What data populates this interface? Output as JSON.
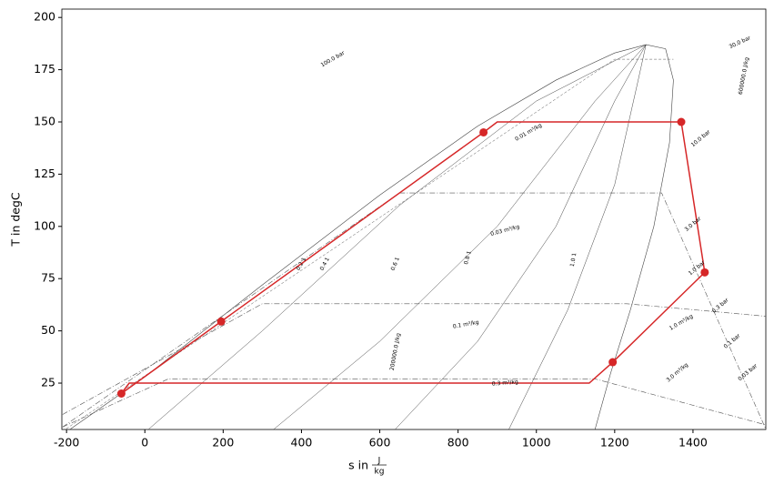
{
  "chart_data": {
    "type": "line",
    "xlabel": {
      "text": "s in",
      "unit_num": "J",
      "unit_den": "kg"
    },
    "ylabel": "T in degC",
    "xlim": [
      -212,
      1586
    ],
    "ylim": [
      2.8,
      204
    ],
    "xticks": [
      -200,
      0,
      200,
      400,
      600,
      800,
      1000,
      1200,
      1400
    ],
    "yticks": [
      25,
      50,
      75,
      100,
      125,
      150,
      175,
      200
    ],
    "series": [
      {
        "color": "#444444",
        "linestyle": "solid",
        "width": 0.6,
        "x": [
          -190,
          0,
          300,
          600,
          850,
          1050,
          1200,
          1280,
          1330,
          1350,
          1340,
          1300,
          1240,
          1190,
          1150
        ],
        "values": [
          3,
          28,
          72,
          115,
          148,
          170,
          183,
          187,
          185,
          170,
          140,
          100,
          60,
          30,
          3
        ]
      },
      {
        "color": "#444444",
        "linestyle": "solid",
        "width": 0.5,
        "x": [
          10,
          300,
          650,
          1000,
          1280
        ],
        "values": [
          3,
          50,
          110,
          160,
          187
        ]
      },
      {
        "color": "#444444",
        "linestyle": "solid",
        "width": 0.5,
        "x": [
          330,
          600,
          900,
          1150,
          1280
        ],
        "values": [
          3,
          45,
          100,
          160,
          187
        ]
      },
      {
        "color": "#444444",
        "linestyle": "solid",
        "width": 0.5,
        "x": [
          640,
          850,
          1050,
          1200,
          1280
        ],
        "values": [
          3,
          45,
          100,
          160,
          187
        ]
      },
      {
        "color": "#444444",
        "linestyle": "solid",
        "width": 0.5,
        "x": [
          930,
          1080,
          1200,
          1260,
          1280
        ],
        "values": [
          3,
          60,
          120,
          170,
          187
        ]
      },
      {
        "color": "#555555",
        "linestyle": "dashed",
        "width": 0.5,
        "x": [
          -210,
          1200,
          1350
        ],
        "values": [
          2,
          180,
          180
        ]
      },
      {
        "color": "#555555",
        "linestyle": "dashdot",
        "width": 0.6,
        "x": [
          -210,
          300,
          1230,
          1586
        ],
        "values": [
          10,
          63,
          63,
          57
        ]
      },
      {
        "color": "#555555",
        "linestyle": "dashdot",
        "width": 0.6,
        "x": [
          -210,
          60,
          1150,
          1586
        ],
        "values": [
          4,
          27,
          27,
          5
        ]
      },
      {
        "color": "#555555",
        "linestyle": "dashdot",
        "width": 0.6,
        "x": [
          -210,
          650,
          1320,
          1586
        ],
        "values": [
          4,
          116,
          116,
          3
        ]
      },
      {
        "color": "#d62728",
        "linestyle": "solid",
        "width": 1.5,
        "x": [
          -60,
          -40,
          1135,
          1195,
          1430,
          1370,
          900,
          865,
          195,
          -60
        ],
        "values": [
          20,
          25,
          25,
          35,
          78,
          150,
          150,
          145,
          54.5,
          20
        ]
      },
      {
        "color": "#d62728",
        "marker": true,
        "x": [
          -60,
          195,
          865,
          1370,
          1430,
          1195
        ],
        "values": [
          20,
          54.5,
          145,
          150,
          78,
          35
        ]
      }
    ],
    "annotations": [
      "0.2 1",
      "0.4 1",
      "0.6 1",
      "0.8 1",
      "1.0 1",
      "100.0 bar",
      "30.0 bar",
      "10.0 bar",
      "3.0 bar",
      "1.0 bar",
      "0.3 bar",
      "0.1 bar",
      "0.03 bar",
      "200000.0 J/kg",
      "600000.0 J/kg",
      "0.01 m³/kg",
      "0.03 m³/kg",
      "0.1 m³/kg",
      "1.0 m³/kg",
      "3.0 m³/kg",
      "0.3 m³/kg"
    ]
  }
}
